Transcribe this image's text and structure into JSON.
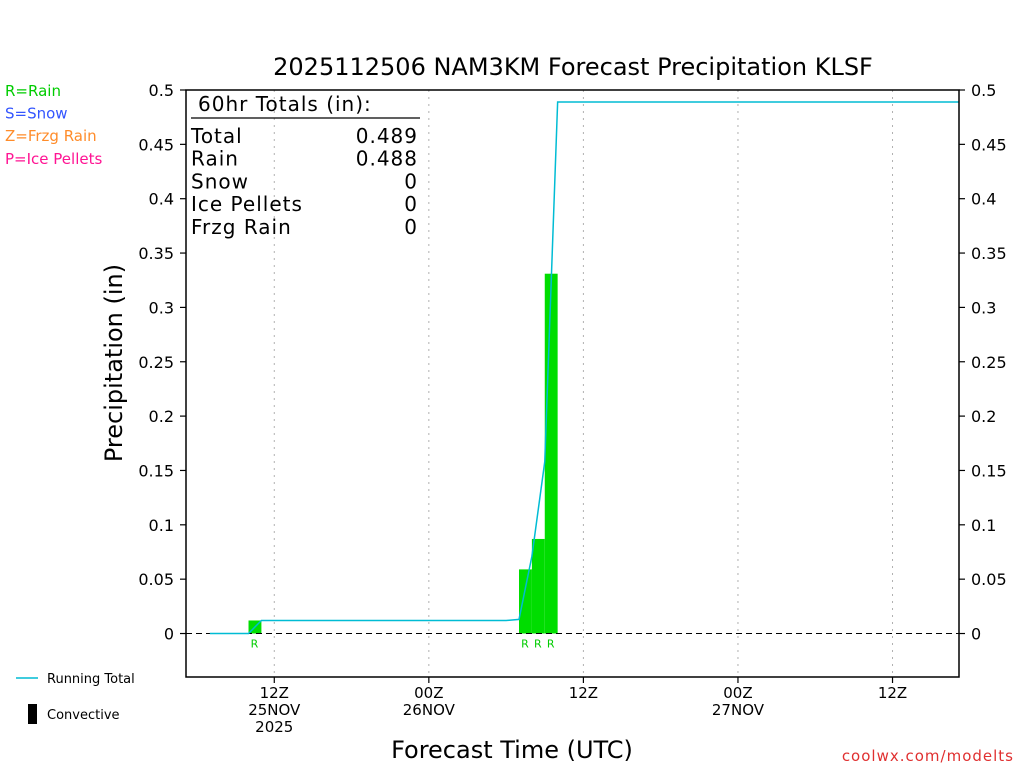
{
  "chart_data": {
    "type": "bar",
    "title": "2025112506 NAM3KM Forecast Precipitation KLSF",
    "xlabel": "Forecast Time (UTC)",
    "ylabel": "Precipitation (in)",
    "ylim": [
      -0.04,
      0.5
    ],
    "y_ticks": [
      0,
      0.05,
      0.1,
      0.15,
      0.2,
      0.25,
      0.3,
      0.35,
      0.4,
      0.45,
      0.5
    ],
    "y_tick_labels": [
      "0",
      "0.05",
      "0.1",
      "0.15",
      "0.2",
      "0.25",
      "0.3",
      "0.35",
      "0.4",
      "0.45",
      "0.5"
    ],
    "x_unit": "forecast hour",
    "xlim": [
      0,
      60
    ],
    "x_ticks": [
      {
        "hour": 6,
        "lines": [
          "12Z",
          "25NOV",
          "2025"
        ]
      },
      {
        "hour": 18,
        "lines": [
          "00Z",
          "26NOV"
        ]
      },
      {
        "hour": 30,
        "lines": [
          "12Z"
        ]
      },
      {
        "hour": 42,
        "lines": [
          "00Z",
          "27NOV"
        ]
      },
      {
        "hour": 54,
        "lines": [
          "12Z"
        ]
      }
    ],
    "grid": "vertical dotted at x ticks",
    "legend": [
      {
        "label": "R=Rain",
        "color": "#00cc00"
      },
      {
        "label": "S=Snow",
        "color": "#3355ff"
      },
      {
        "label": "Z=Frzg Rain",
        "color": "#ff8c2a"
      },
      {
        "label": "P=Ice Pellets",
        "color": "#ff1493"
      }
    ],
    "legend_lines": [
      {
        "label": "Running Total",
        "color": "#00bcd4",
        "kind": "line"
      },
      {
        "label": "Convective",
        "color": "#000000",
        "kind": "box"
      }
    ],
    "bars": [
      {
        "hour": 5,
        "value": 0.012,
        "type": "R"
      },
      {
        "hour": 26,
        "value": 0.059,
        "type": "R"
      },
      {
        "hour": 27,
        "value": 0.087,
        "type": "R"
      },
      {
        "hour": 28,
        "value": 0.331,
        "type": "R"
      }
    ],
    "running_total": {
      "name": "Running Total",
      "x": [
        1,
        3,
        4,
        5,
        24,
        25,
        26,
        27,
        28,
        60
      ],
      "y": [
        0,
        0,
        0,
        0.012,
        0.012,
        0.013,
        0.071,
        0.158,
        0.489,
        0.489
      ]
    },
    "totals_box": {
      "header": "60hr Totals (in):",
      "rows": [
        {
          "label": "Total",
          "value": "0.489"
        },
        {
          "label": "Rain",
          "value": "0.488"
        },
        {
          "label": "Snow",
          "value": "0"
        },
        {
          "label": "Ice Pellets",
          "value": "0"
        },
        {
          "label": "Frzg Rain",
          "value": "0"
        }
      ]
    },
    "credit": "coolwx.com/modelts",
    "colors": {
      "rain_bar": "#00dd00",
      "type_letter": "#00cc00",
      "running_total": "#00bcd4",
      "axis": "#000000",
      "grid": "#b0b0b0",
      "credit": "#e03030"
    }
  }
}
